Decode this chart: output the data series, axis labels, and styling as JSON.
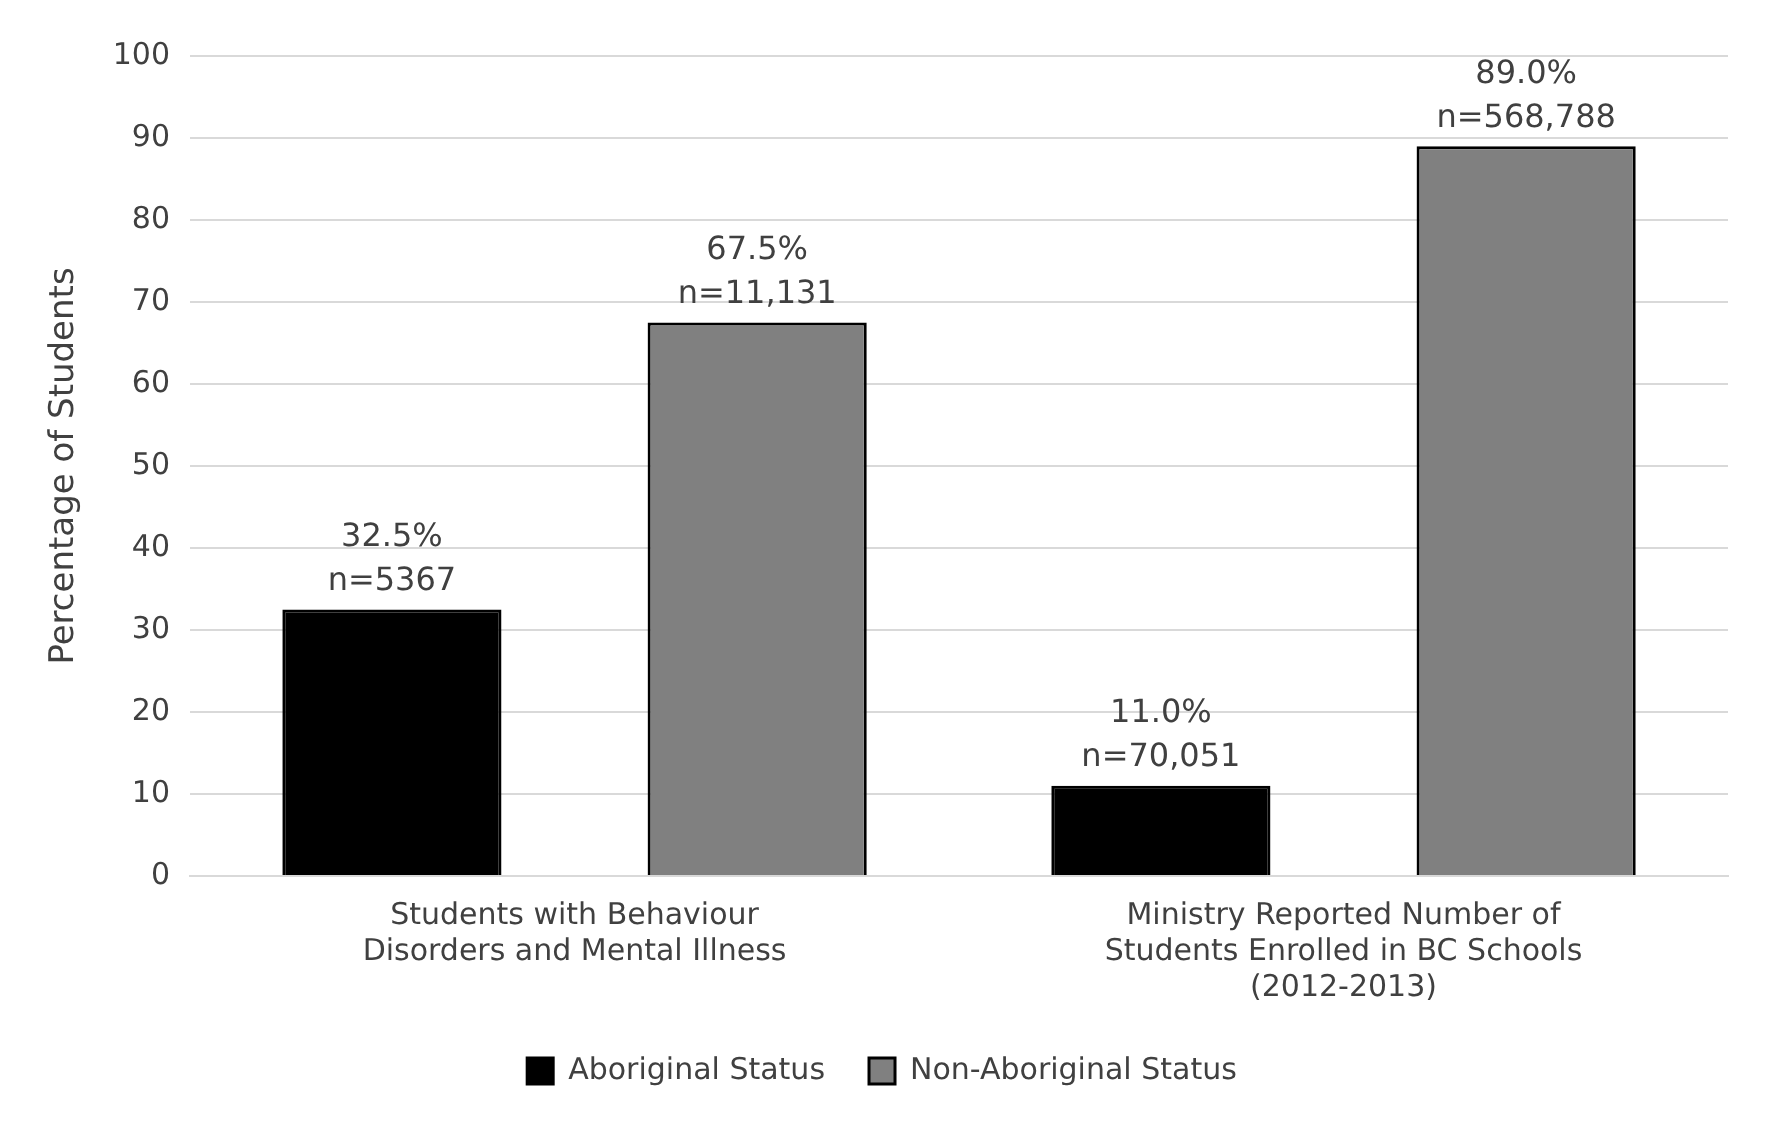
{
  "chart_data": {
    "type": "bar",
    "ylabel": "Percentage of Students",
    "categories": [
      "Students with Behaviour Disorders and Mental Illness",
      "Ministry Reported Number of Students Enrolled in BC Schools (2012-2013)"
    ],
    "series": [
      {
        "name": "Aboriginal Status",
        "color": "#000000",
        "values": [
          32.5,
          11.0
        ],
        "value_labels": [
          "32.5%\nn=5367",
          "11.0%\nn=70,051"
        ]
      },
      {
        "name": "Non-Aboriginal Status",
        "color": "#808080",
        "values": [
          67.5,
          89.0
        ],
        "value_labels": [
          "67.5%\nn=11,131",
          "89.0%\nn=568,788"
        ]
      }
    ],
    "ylim": [
      0,
      100
    ],
    "yticks": [
      0,
      10,
      20,
      30,
      40,
      50,
      60,
      70,
      80,
      90,
      100
    ],
    "grid": "y",
    "legend": "bottom"
  }
}
